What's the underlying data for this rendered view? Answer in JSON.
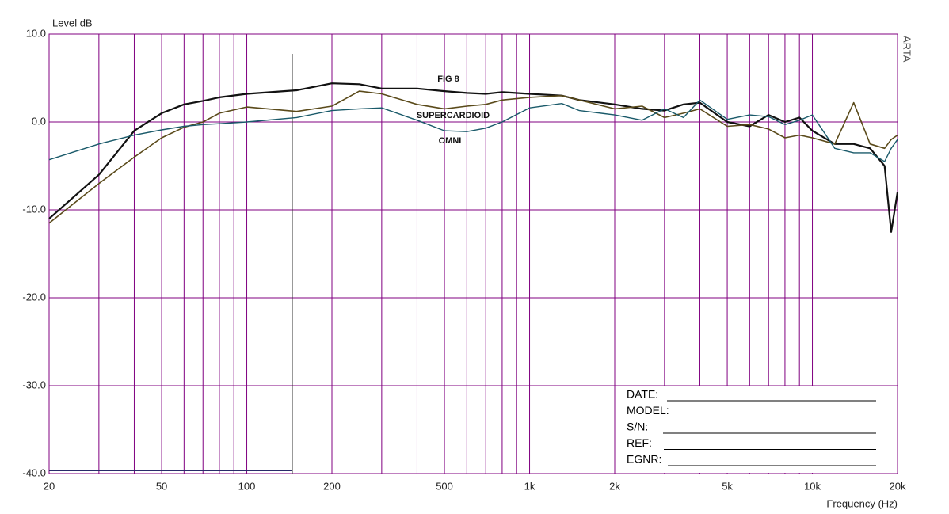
{
  "chart_data": {
    "type": "line",
    "y_label": "Level dB",
    "x_label": "Frequency (Hz)",
    "watermark": "ARTA",
    "log_x": true,
    "grid": true,
    "xlim": [
      20,
      20000
    ],
    "ylim": [
      -40,
      10
    ],
    "yticks": [
      {
        "value": -40,
        "label": "-40.0"
      },
      {
        "value": -30,
        "label": "-30.0"
      },
      {
        "value": -20,
        "label": "-20.0"
      },
      {
        "value": -10,
        "label": "-10.0"
      },
      {
        "value": 0,
        "label": "0.0"
      },
      {
        "value": 10,
        "label": "10.0"
      }
    ],
    "xticks": [
      20,
      50,
      100,
      200,
      500,
      {
        "value": 1000,
        "label": "1k"
      },
      {
        "value": 2000,
        "label": "2k"
      },
      {
        "value": 5000,
        "label": "5k"
      },
      {
        "value": 10000,
        "label": "10k"
      },
      {
        "value": 20000,
        "label": "20k"
      }
    ],
    "xminor": [
      30,
      40,
      60,
      70,
      80,
      90,
      300,
      400,
      600,
      700,
      800,
      900,
      3000,
      4000,
      6000,
      7000,
      8000,
      9000
    ],
    "x": [
      20,
      30,
      40,
      50,
      60,
      70,
      80,
      100,
      150,
      200,
      250,
      300,
      400,
      500,
      600,
      700,
      800,
      1000,
      1300,
      1500,
      2000,
      2500,
      3000,
      3500,
      4000,
      5000,
      6000,
      7000,
      8000,
      9000,
      10000,
      12000,
      14000,
      16000,
      18000,
      19000,
      20000
    ],
    "series": [
      {
        "name": "FIG 8",
        "color": "#111111",
        "values": [
          -11,
          -6,
          -1,
          1,
          2,
          2.4,
          2.8,
          3.2,
          3.6,
          4.4,
          4.3,
          3.8,
          3.8,
          3.5,
          3.3,
          3.2,
          3.4,
          3.2,
          3,
          2.5,
          2,
          1.5,
          1.3,
          2,
          2.2,
          0,
          -0.5,
          0.8,
          0,
          0.5,
          -1,
          -2.5,
          -2.5,
          -3,
          -5,
          -12.5,
          -8
        ]
      },
      {
        "name": "SUPERCARDIOID",
        "color": "#5a4a1a",
        "values": [
          -11.5,
          -7,
          -4,
          -1.8,
          -0.6,
          0,
          1,
          1.7,
          1.2,
          1.8,
          3.5,
          3.2,
          2,
          1.5,
          1.8,
          2,
          2.5,
          2.8,
          3,
          2.5,
          1.5,
          1.8,
          0.5,
          1,
          1.5,
          -0.5,
          -0.3,
          -0.8,
          -1.8,
          -1.5,
          -1.8,
          -2.5,
          2.2,
          -2.5,
          -3,
          -2,
          -1.5
        ]
      },
      {
        "name": "OMNI",
        "color": "#1a5a6a",
        "values": [
          -4.3,
          -2.5,
          -1.5,
          -0.9,
          -0.5,
          -0.3,
          -0.2,
          0,
          0.5,
          1.3,
          1.5,
          1.6,
          0.2,
          -1,
          -1.1,
          -0.7,
          0,
          1.6,
          2.1,
          1.3,
          0.8,
          0.2,
          1.5,
          0.5,
          2.5,
          0.3,
          0.8,
          0.6,
          -0.3,
          0.2,
          0.8,
          -3,
          -3.5,
          -3.5,
          -4.5,
          -3,
          -2
        ]
      }
    ]
  },
  "form": {
    "fields": [
      "DATE:",
      "MODEL:",
      "S/N:",
      "REF:",
      "EGNR:"
    ]
  }
}
